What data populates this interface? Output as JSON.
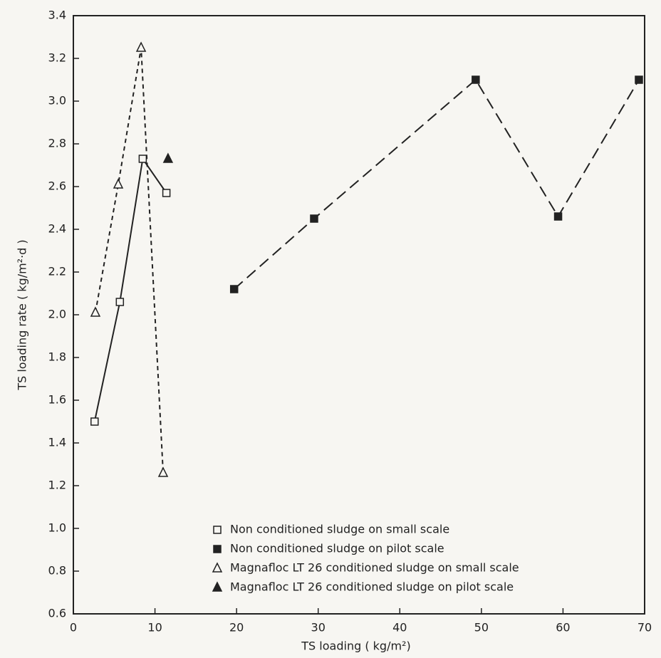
{
  "chart_data": {
    "type": "line",
    "xlabel": "TS loading ( kg/m²)",
    "ylabel": "TS loading rate ( kg/m²·d )",
    "xlim": [
      0,
      70
    ],
    "xticks": [
      0,
      10,
      20,
      30,
      40,
      50,
      60,
      70
    ],
    "ylim": [
      0.6,
      3.4
    ],
    "yticks": [
      0.6,
      0.8,
      {
        "value": 1,
        "label": "1.0"
      },
      1.2,
      1.4,
      1.6,
      1.8,
      {
        "value": 2,
        "label": "2.0"
      },
      2.2,
      2.4,
      2.6,
      2.8,
      {
        "value": 3,
        "label": "3.0"
      },
      3.2,
      3.4
    ],
    "grid": false,
    "legend": "lower center",
    "series": [
      {
        "name": "Non conditioned sludge on small scale",
        "color": "#222222",
        "marker": "square-open",
        "line_style": "solid",
        "x": [
          2.6,
          5.7,
          8.5,
          11.4
        ],
        "values": [
          1.5,
          2.06,
          2.73,
          2.57
        ]
      },
      {
        "name": "Non conditioned sludge on pilot scale",
        "color": "#222222",
        "marker": "square-filled",
        "line_style": "longdash",
        "x": [
          19.7,
          29.5,
          49.3,
          59.4,
          69.3
        ],
        "values": [
          2.12,
          2.45,
          3.1,
          2.46,
          3.1
        ]
      },
      {
        "name": "Magnafloc LT 26 conditioned sludge on small scale",
        "color": "#222222",
        "marker": "triangle-open",
        "line_style": "dashed",
        "x": [
          2.7,
          5.5,
          8.3,
          11.0
        ],
        "values": [
          2.01,
          2.61,
          3.25,
          1.26
        ]
      },
      {
        "name": "Magnafloc LT 26 conditioned sludge on pilot scale",
        "color": "#222222",
        "marker": "triangle-filled",
        "line_style": "dashed",
        "x": [
          11.6
        ],
        "values": [
          2.73
        ]
      }
    ]
  }
}
